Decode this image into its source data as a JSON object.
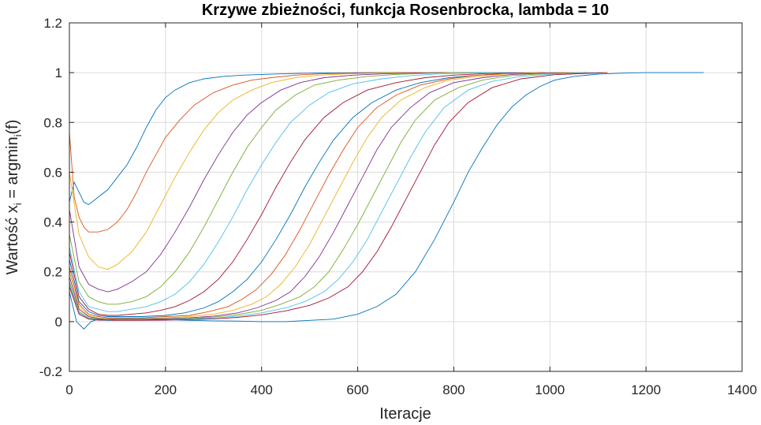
{
  "chart_data": {
    "type": "line",
    "title": "Krzywe zbieżności, funkcja Rosenbrocka, lambda = 10",
    "xlabel": "Iteracje",
    "ylabel": {
      "main": "Wartość x",
      "sub1": "i",
      "mid": " = argmin",
      "sub2": "i",
      "tail": "(f)"
    },
    "xlim": [
      0,
      1400
    ],
    "ylim": [
      -0.2,
      1.2
    ],
    "xticks": [
      0,
      200,
      400,
      600,
      800,
      1000,
      1200,
      1400
    ],
    "yticks": [
      -0.2,
      0,
      0.2,
      0.4,
      0.6,
      0.8,
      1,
      1.2
    ],
    "xtick_labels": [
      "0",
      "200",
      "400",
      "600",
      "800",
      "1000",
      "1200",
      "1400"
    ],
    "ytick_labels": [
      "-0.2",
      "0",
      "0.2",
      "0.4",
      "0.6",
      "0.8",
      "1",
      "1.2"
    ],
    "grid": true,
    "legend": "none",
    "colors": [
      "#0072BD",
      "#D95319",
      "#EDB120",
      "#7E2F8E",
      "#77AC30",
      "#4DBEEE",
      "#A2142F"
    ],
    "series": [
      {
        "color": "#0072BD",
        "x": [
          0,
          10,
          20,
          30,
          40,
          60,
          80,
          100,
          120,
          140,
          160,
          180,
          200,
          220,
          250,
          280,
          320,
          360,
          400,
          450,
          500,
          560,
          620,
          680,
          740
        ],
        "y": [
          0.48,
          0.56,
          0.52,
          0.48,
          0.47,
          0.5,
          0.53,
          0.58,
          0.63,
          0.7,
          0.78,
          0.85,
          0.9,
          0.93,
          0.96,
          0.975,
          0.985,
          0.99,
          0.993,
          0.996,
          0.998,
          0.999,
          1.0,
          1.0,
          1.0
        ]
      },
      {
        "color": "#D95319",
        "x": [
          0,
          10,
          20,
          30,
          40,
          60,
          80,
          100,
          120,
          140,
          160,
          180,
          200,
          230,
          260,
          300,
          340,
          380,
          420,
          470,
          520,
          580,
          640,
          700,
          760,
          820
        ],
        "y": [
          0.76,
          0.5,
          0.42,
          0.38,
          0.36,
          0.36,
          0.37,
          0.4,
          0.45,
          0.52,
          0.6,
          0.67,
          0.74,
          0.81,
          0.87,
          0.92,
          0.95,
          0.97,
          0.98,
          0.99,
          0.995,
          0.998,
          0.999,
          1.0,
          1.0,
          1.0
        ]
      },
      {
        "color": "#EDB120",
        "x": [
          0,
          20,
          40,
          60,
          80,
          100,
          130,
          160,
          190,
          220,
          250,
          280,
          310,
          340,
          380,
          420,
          470,
          520,
          580,
          640,
          700,
          760,
          820,
          880
        ],
        "y": [
          0.6,
          0.35,
          0.26,
          0.22,
          0.21,
          0.23,
          0.28,
          0.36,
          0.47,
          0.58,
          0.68,
          0.77,
          0.84,
          0.89,
          0.93,
          0.96,
          0.98,
          0.99,
          0.995,
          0.998,
          0.999,
          1.0,
          1.0,
          1.0
        ]
      },
      {
        "color": "#7E2F8E",
        "x": [
          0,
          20,
          40,
          60,
          80,
          100,
          130,
          160,
          190,
          220,
          250,
          280,
          310,
          340,
          370,
          400,
          440,
          480,
          530,
          590,
          650,
          710,
          770,
          830,
          900
        ],
        "y": [
          0.45,
          0.22,
          0.15,
          0.13,
          0.12,
          0.13,
          0.16,
          0.2,
          0.27,
          0.36,
          0.46,
          0.57,
          0.67,
          0.76,
          0.83,
          0.88,
          0.93,
          0.96,
          0.98,
          0.99,
          0.995,
          0.998,
          1.0,
          1.0,
          1.0
        ]
      },
      {
        "color": "#77AC30",
        "x": [
          0,
          20,
          40,
          60,
          80,
          100,
          130,
          160,
          190,
          220,
          250,
          280,
          310,
          340,
          370,
          400,
          430,
          470,
          510,
          560,
          620,
          680,
          740,
          800,
          860,
          930
        ],
        "y": [
          0.35,
          0.16,
          0.1,
          0.08,
          0.07,
          0.07,
          0.08,
          0.1,
          0.14,
          0.2,
          0.28,
          0.38,
          0.49,
          0.6,
          0.7,
          0.78,
          0.85,
          0.91,
          0.95,
          0.97,
          0.985,
          0.993,
          0.997,
          1.0,
          1.0,
          1.0
        ]
      },
      {
        "color": "#4DBEEE",
        "x": [
          0,
          20,
          40,
          60,
          80,
          100,
          130,
          160,
          190,
          220,
          250,
          280,
          310,
          340,
          370,
          400,
          430,
          460,
          500,
          540,
          590,
          650,
          710,
          770,
          830,
          900,
          960
        ],
        "y": [
          0.3,
          0.12,
          0.06,
          0.05,
          0.04,
          0.04,
          0.05,
          0.06,
          0.08,
          0.11,
          0.16,
          0.23,
          0.32,
          0.42,
          0.53,
          0.63,
          0.72,
          0.8,
          0.87,
          0.92,
          0.955,
          0.975,
          0.988,
          0.995,
          0.998,
          1.0,
          1.0
        ]
      },
      {
        "color": "#A2142F",
        "x": [
          0,
          20,
          40,
          60,
          80,
          100,
          130,
          160,
          190,
          220,
          250,
          280,
          310,
          340,
          370,
          400,
          430,
          460,
          490,
          530,
          570,
          620,
          680,
          740,
          800,
          860,
          930,
          990
        ],
        "y": [
          0.28,
          0.1,
          0.05,
          0.03,
          0.025,
          0.025,
          0.03,
          0.035,
          0.045,
          0.06,
          0.085,
          0.12,
          0.17,
          0.24,
          0.33,
          0.43,
          0.54,
          0.64,
          0.73,
          0.82,
          0.88,
          0.93,
          0.96,
          0.98,
          0.99,
          0.996,
          0.999,
          1.0
        ]
      },
      {
        "color": "#0072BD",
        "x": [
          0,
          20,
          40,
          60,
          80,
          100,
          150,
          200,
          240,
          280,
          310,
          340,
          370,
          400,
          430,
          460,
          490,
          520,
          550,
          590,
          630,
          680,
          730,
          790,
          850,
          910,
          970,
          1020
        ],
        "y": [
          0.25,
          0.08,
          0.04,
          0.025,
          0.02,
          0.02,
          0.02,
          0.025,
          0.035,
          0.055,
          0.08,
          0.12,
          0.17,
          0.24,
          0.33,
          0.43,
          0.54,
          0.64,
          0.73,
          0.82,
          0.88,
          0.93,
          0.96,
          0.98,
          0.99,
          0.996,
          0.999,
          1.0
        ]
      },
      {
        "color": "#D95319",
        "x": [
          0,
          20,
          40,
          60,
          80,
          100,
          150,
          200,
          250,
          290,
          330,
          360,
          390,
          420,
          450,
          480,
          510,
          540,
          570,
          600,
          640,
          680,
          730,
          790,
          850,
          910,
          970,
          1040
        ],
        "y": [
          0.22,
          0.07,
          0.03,
          0.02,
          0.015,
          0.015,
          0.015,
          0.02,
          0.025,
          0.04,
          0.06,
          0.09,
          0.13,
          0.19,
          0.27,
          0.37,
          0.48,
          0.59,
          0.69,
          0.78,
          0.86,
          0.91,
          0.95,
          0.975,
          0.99,
          0.996,
          0.999,
          1.0
        ]
      },
      {
        "color": "#EDB120",
        "x": [
          0,
          20,
          40,
          60,
          80,
          100,
          150,
          200,
          250,
          300,
          340,
          380,
          410,
          440,
          470,
          500,
          530,
          560,
          590,
          620,
          650,
          690,
          740,
          790,
          850,
          910,
          980,
          1060
        ],
        "y": [
          0.2,
          0.06,
          0.025,
          0.015,
          0.012,
          0.012,
          0.012,
          0.015,
          0.02,
          0.03,
          0.045,
          0.07,
          0.1,
          0.15,
          0.22,
          0.31,
          0.42,
          0.53,
          0.64,
          0.74,
          0.82,
          0.89,
          0.94,
          0.97,
          0.985,
          0.995,
          0.999,
          1.0
        ]
      },
      {
        "color": "#7E2F8E",
        "x": [
          0,
          20,
          40,
          60,
          80,
          100,
          150,
          200,
          250,
          300,
          350,
          390,
          430,
          460,
          490,
          520,
          550,
          580,
          610,
          640,
          670,
          710,
          750,
          800,
          860,
          920,
          990,
          1080
        ],
        "y": [
          0.18,
          0.05,
          0.02,
          0.012,
          0.01,
          0.01,
          0.01,
          0.012,
          0.015,
          0.022,
          0.035,
          0.055,
          0.085,
          0.12,
          0.18,
          0.26,
          0.36,
          0.47,
          0.58,
          0.69,
          0.78,
          0.86,
          0.92,
          0.96,
          0.98,
          0.993,
          0.998,
          1.0
        ]
      },
      {
        "color": "#77AC30",
        "x": [
          0,
          20,
          40,
          60,
          80,
          100,
          150,
          200,
          250,
          300,
          350,
          400,
          440,
          480,
          510,
          540,
          570,
          600,
          630,
          660,
          690,
          720,
          760,
          810,
          860,
          920,
          990,
          1090
        ],
        "y": [
          0.16,
          0.04,
          0.015,
          0.01,
          0.008,
          0.008,
          0.008,
          0.01,
          0.012,
          0.018,
          0.028,
          0.045,
          0.07,
          0.1,
          0.14,
          0.2,
          0.29,
          0.39,
          0.5,
          0.61,
          0.72,
          0.81,
          0.89,
          0.94,
          0.97,
          0.988,
          0.996,
          1.0
        ]
      },
      {
        "color": "#4DBEEE",
        "x": [
          0,
          20,
          40,
          60,
          80,
          100,
          150,
          200,
          250,
          300,
          350,
          400,
          450,
          490,
          530,
          560,
          590,
          620,
          650,
          680,
          710,
          740,
          780,
          830,
          880,
          940,
          1010,
          1110
        ],
        "y": [
          0.15,
          0.035,
          0.012,
          0.008,
          0.006,
          0.006,
          0.006,
          0.008,
          0.01,
          0.014,
          0.022,
          0.035,
          0.055,
          0.08,
          0.12,
          0.17,
          0.24,
          0.33,
          0.44,
          0.55,
          0.66,
          0.76,
          0.86,
          0.93,
          0.965,
          0.985,
          0.995,
          1.0
        ]
      },
      {
        "color": "#A2142F",
        "x": [
          0,
          20,
          40,
          60,
          80,
          100,
          150,
          200,
          250,
          300,
          350,
          400,
          450,
          500,
          540,
          580,
          610,
          640,
          670,
          700,
          730,
          760,
          790,
          830,
          880,
          940,
          1010,
          1120
        ],
        "y": [
          0.14,
          0.03,
          0.01,
          0.006,
          0.005,
          0.005,
          0.005,
          0.006,
          0.008,
          0.011,
          0.017,
          0.027,
          0.043,
          0.065,
          0.095,
          0.14,
          0.2,
          0.28,
          0.38,
          0.49,
          0.6,
          0.71,
          0.8,
          0.88,
          0.94,
          0.975,
          0.992,
          1.0
        ]
      },
      {
        "color": "#0072BD",
        "x": [
          0,
          15,
          30,
          45,
          60,
          80,
          100,
          150,
          200,
          250,
          300,
          350,
          400,
          450,
          500,
          550,
          600,
          640,
          680,
          720,
          760,
          800,
          830,
          860,
          890,
          920,
          950,
          980,
          1010,
          1050,
          1100,
          1150,
          1200,
          1250,
          1320
        ],
        "y": [
          0.12,
          0.0,
          -0.03,
          0.0,
          0.01,
          0.005,
          0.01,
          0.01,
          0.008,
          0.005,
          0.003,
          0.002,
          0.0,
          0.0,
          0.005,
          0.01,
          0.03,
          0.06,
          0.11,
          0.2,
          0.33,
          0.48,
          0.6,
          0.7,
          0.79,
          0.86,
          0.91,
          0.945,
          0.97,
          0.985,
          0.994,
          0.998,
          1.0,
          1.0,
          1.0
        ]
      }
    ]
  }
}
